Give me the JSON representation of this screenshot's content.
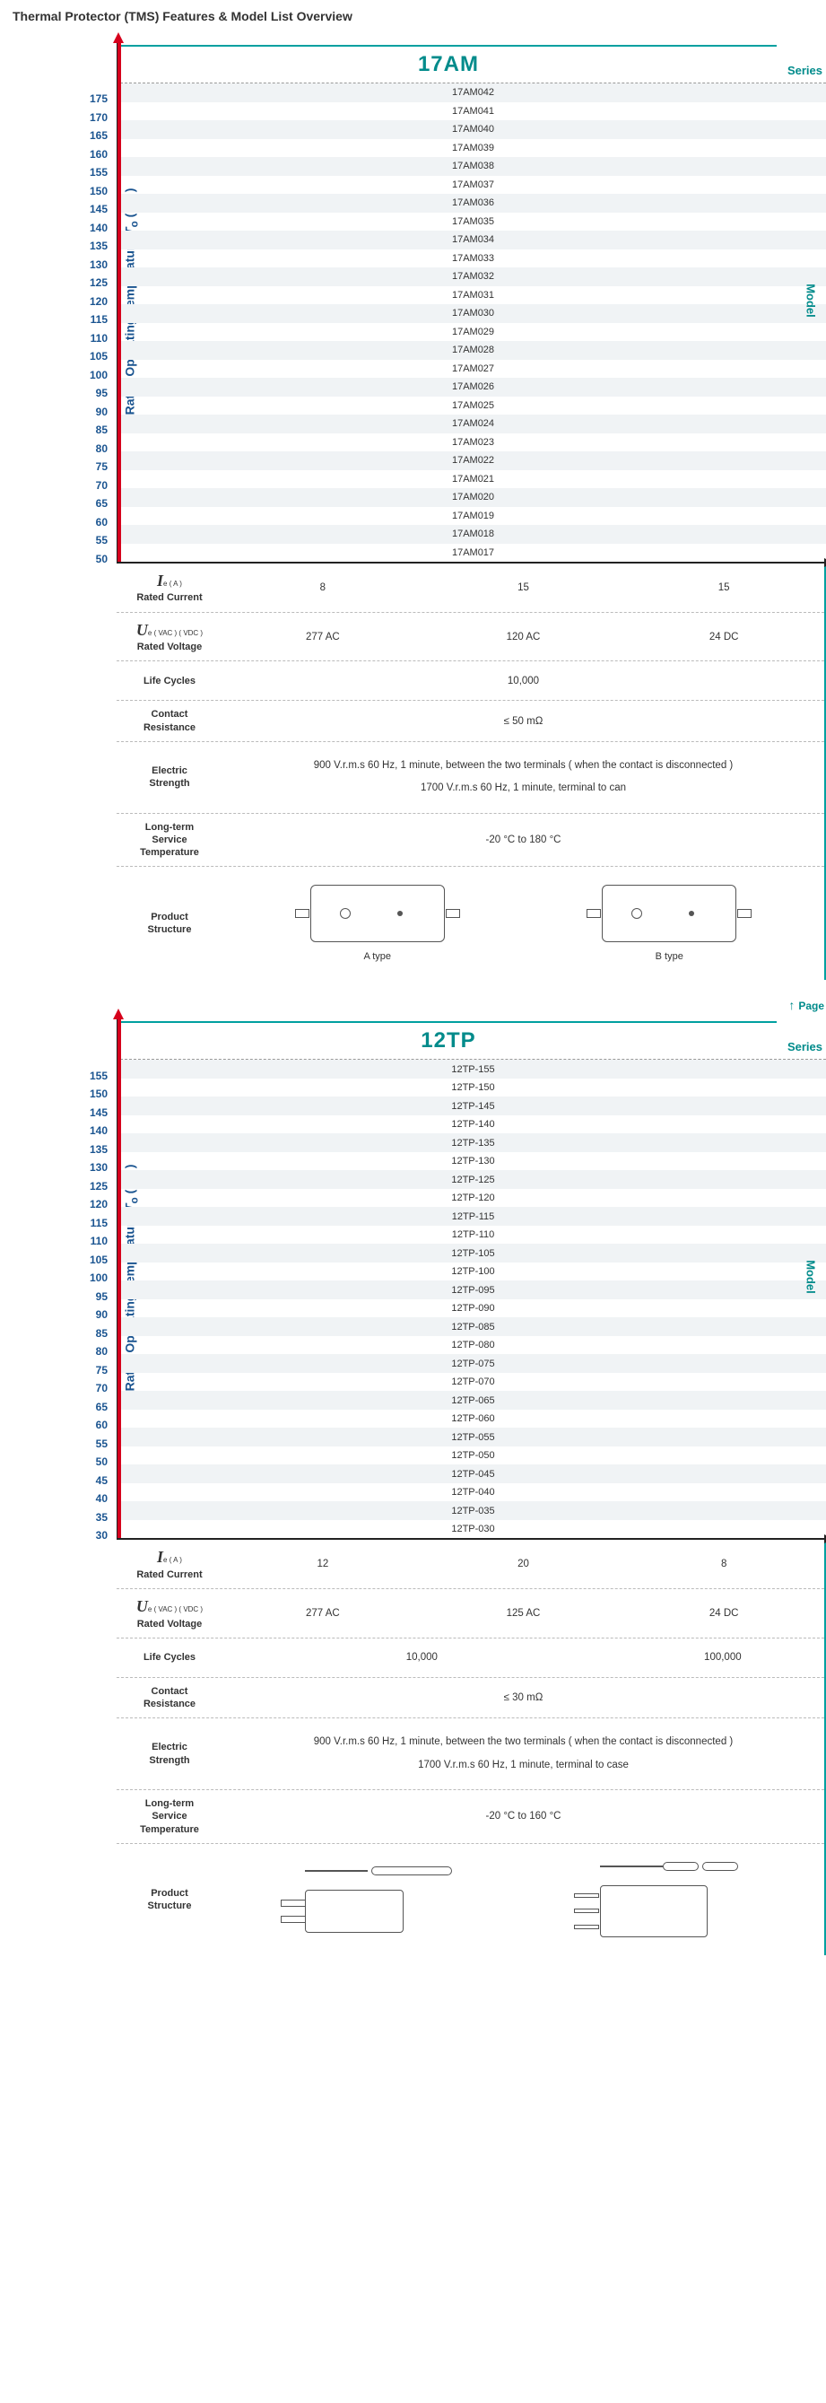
{
  "page_title": "Thermal Protector (TMS) Features & Model List Overview",
  "labels": {
    "series": "Series",
    "model": "Model",
    "page": "Page",
    "y_axis_pre": "Rated Operating Temperature  ",
    "y_axis_sym": "T",
    "y_axis_sub": "o",
    "y_axis_unit": " ( °C )",
    "rated_current_sym": "I",
    "rated_current_sub": "e ( A )",
    "rated_current": "Rated Current",
    "rated_voltage_sym": "U",
    "rated_voltage_sub": "e ( VAC ) ( VDC )",
    "rated_voltage": "Rated Voltage",
    "life_cycles": "Life Cycles",
    "contact_resistance": "Contact Resistance",
    "electric_strength": "Electric Strength",
    "long_term": "Long-term Service Temperature",
    "product_structure": "Product Structure"
  },
  "series": [
    {
      "name": "17AM",
      "show_page_link": false,
      "rows": [
        {
          "t": "175",
          "m": "17AM042"
        },
        {
          "t": "170",
          "m": "17AM041"
        },
        {
          "t": "165",
          "m": "17AM040"
        },
        {
          "t": "160",
          "m": "17AM039"
        },
        {
          "t": "155",
          "m": "17AM038"
        },
        {
          "t": "150",
          "m": "17AM037"
        },
        {
          "t": "145",
          "m": "17AM036"
        },
        {
          "t": "140",
          "m": "17AM035"
        },
        {
          "t": "135",
          "m": "17AM034"
        },
        {
          "t": "130",
          "m": "17AM033"
        },
        {
          "t": "125",
          "m": "17AM032"
        },
        {
          "t": "120",
          "m": "17AM031"
        },
        {
          "t": "115",
          "m": "17AM030"
        },
        {
          "t": "110",
          "m": "17AM029"
        },
        {
          "t": "105",
          "m": "17AM028"
        },
        {
          "t": "100",
          "m": "17AM027"
        },
        {
          "t": "95",
          "m": "17AM026"
        },
        {
          "t": "90",
          "m": "17AM025"
        },
        {
          "t": "85",
          "m": "17AM024"
        },
        {
          "t": "80",
          "m": "17AM023"
        },
        {
          "t": "75",
          "m": "17AM022"
        },
        {
          "t": "70",
          "m": "17AM021"
        },
        {
          "t": "65",
          "m": "17AM020"
        },
        {
          "t": "60",
          "m": "17AM019"
        },
        {
          "t": "55",
          "m": "17AM018"
        },
        {
          "t": "50",
          "m": "17AM017"
        }
      ],
      "rated_current": [
        "8",
        "15",
        "15"
      ],
      "rated_voltage": [
        "277 AC",
        "120 AC",
        "24 DC"
      ],
      "life_cycles": [
        "10,000"
      ],
      "contact_resistance": "≤ 50 mΩ",
      "electric_strength": [
        "900 V.r.m.s 60 Hz, 1 minute, between the two terminals ( when the contact is disconnected )",
        "1700 V.r.m.s 60 Hz, 1 minute, terminal to can"
      ],
      "long_term": "-20 °C to 180 °C",
      "structures": [
        "A type",
        "B type"
      ],
      "struct_style": "ab"
    },
    {
      "name": "12TP",
      "show_page_link": true,
      "rows": [
        {
          "t": "155",
          "m": "12TP-155"
        },
        {
          "t": "150",
          "m": "12TP-150"
        },
        {
          "t": "145",
          "m": "12TP-145"
        },
        {
          "t": "140",
          "m": "12TP-140"
        },
        {
          "t": "135",
          "m": "12TP-135"
        },
        {
          "t": "130",
          "m": "12TP-130"
        },
        {
          "t": "125",
          "m": "12TP-125"
        },
        {
          "t": "120",
          "m": "12TP-120"
        },
        {
          "t": "115",
          "m": "12TP-115"
        },
        {
          "t": "110",
          "m": "12TP-110"
        },
        {
          "t": "105",
          "m": "12TP-105"
        },
        {
          "t": "100",
          "m": "12TP-100"
        },
        {
          "t": "95",
          "m": "12TP-095"
        },
        {
          "t": "90",
          "m": "12TP-090"
        },
        {
          "t": "85",
          "m": "12TP-085"
        },
        {
          "t": "80",
          "m": "12TP-080"
        },
        {
          "t": "75",
          "m": "12TP-075"
        },
        {
          "t": "70",
          "m": "12TP-070"
        },
        {
          "t": "65",
          "m": "12TP-065"
        },
        {
          "t": "60",
          "m": "12TP-060"
        },
        {
          "t": "55",
          "m": "12TP-055"
        },
        {
          "t": "50",
          "m": "12TP-050"
        },
        {
          "t": "45",
          "m": "12TP-045"
        },
        {
          "t": "40",
          "m": "12TP-040"
        },
        {
          "t": "35",
          "m": "12TP-035"
        },
        {
          "t": "30",
          "m": "12TP-030"
        }
      ],
      "rated_current": [
        "12",
        "20",
        "8"
      ],
      "rated_voltage": [
        "277 AC",
        "125 AC",
        "24 DC"
      ],
      "life_cycles": [
        "10,000",
        "100,000"
      ],
      "contact_resistance": "≤ 30 mΩ",
      "electric_strength": [
        "900 V.r.m.s 60 Hz, 1 minute, between the two terminals ( when the contact is disconnected )",
        "1700 V.r.m.s 60 Hz, 1 minute, terminal to case"
      ],
      "long_term": "-20 °C to 160 °C",
      "structures": [],
      "struct_style": "tubes"
    }
  ]
}
